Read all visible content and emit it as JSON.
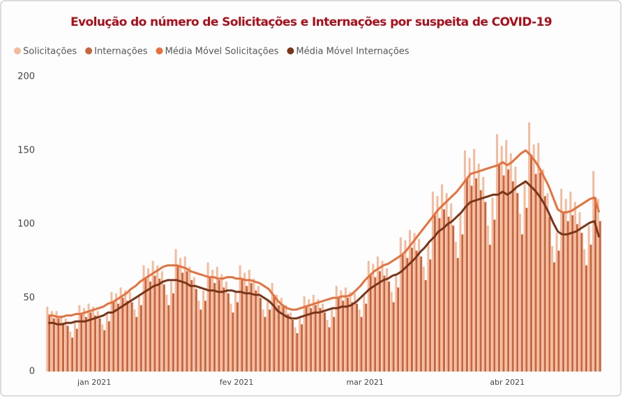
{
  "chart_data": {
    "type": "combo",
    "title": "Evolução do número de Solicitações e Internações por suspeita de COVID-19",
    "categories": [
      null,
      null,
      null,
      null,
      null,
      null,
      null,
      null,
      null,
      null,
      "jan 2021",
      null,
      null,
      null,
      null,
      null,
      null,
      null,
      null,
      null,
      null,
      null,
      null,
      null,
      null,
      null,
      null,
      null,
      null,
      null,
      null,
      null,
      null,
      null,
      null,
      null,
      null,
      null,
      null,
      null,
      null,
      "fev 2021",
      null,
      null,
      null,
      null,
      null,
      null,
      null,
      null,
      null,
      null,
      null,
      null,
      null,
      null,
      null,
      null,
      null,
      null,
      null,
      null,
      null,
      null,
      null,
      null,
      null,
      null,
      null,
      "mar 2021",
      null,
      null,
      null,
      null,
      null,
      null,
      null,
      null,
      null,
      null,
      null,
      null,
      null,
      null,
      null,
      null,
      null,
      null,
      null,
      null,
      null,
      null,
      null,
      null,
      null,
      null,
      null,
      null,
      null,
      null,
      "abr 2021",
      null,
      null,
      null,
      null,
      null,
      null,
      null,
      null,
      null,
      null,
      null,
      null,
      null,
      null,
      null,
      null,
      null,
      null,
      null,
      null
    ],
    "series": [
      {
        "name": "Solicitações",
        "type": "bar",
        "color": "#f5b99b",
        "values": [
          44,
          41,
          41,
          38,
          36,
          27,
          33,
          45,
          43,
          46,
          44,
          41,
          32,
          39,
          54,
          53,
          57,
          55,
          54,
          42,
          52,
          72,
          70,
          75,
          72,
          68,
          52,
          61,
          83,
          77,
          78,
          71,
          64,
          48,
          55,
          74,
          69,
          71,
          66,
          61,
          46,
          54,
          72,
          67,
          69,
          63,
          58,
          42,
          48,
          60,
          52,
          50,
          45,
          40,
          30,
          37,
          51,
          49,
          52,
          49,
          46,
          35,
          43,
          58,
          55,
          57,
          54,
          53,
          42,
          53,
          75,
          73,
          78,
          75,
          70,
          54,
          65,
          91,
          89,
          96,
          94,
          90,
          71,
          87,
          122,
          119,
          127,
          121,
          114,
          88,
          107,
          150,
          145,
          151,
          141,
          132,
          99,
          118,
          161,
          153,
          157,
          148,
          139,
          107,
          128,
          169,
          154,
          155,
          137,
          121,
          85,
          94,
          124,
          117,
          122,
          115,
          108,
          83,
          99,
          136,
          117
        ]
      },
      {
        "name": "Internações",
        "type": "bar",
        "color": "#c9653d",
        "values": [
          38,
          36,
          36,
          33,
          31,
          23,
          29,
          39,
          37,
          40,
          38,
          36,
          28,
          34,
          47,
          46,
          50,
          48,
          47,
          37,
          45,
          63,
          61,
          65,
          63,
          59,
          45,
          53,
          72,
          67,
          68,
          62,
          56,
          42,
          48,
          64,
          60,
          62,
          57,
          53,
          40,
          47,
          63,
          58,
          60,
          55,
          50,
          37,
          42,
          52,
          45,
          44,
          39,
          35,
          26,
          32,
          44,
          43,
          45,
          43,
          40,
          30,
          37,
          50,
          48,
          50,
          47,
          46,
          37,
          46,
          65,
          64,
          68,
          65,
          61,
          47,
          57,
          79,
          77,
          84,
          82,
          78,
          62,
          76,
          106,
          104,
          110,
          105,
          99,
          77,
          93,
          131,
          126,
          131,
          123,
          115,
          86,
          103,
          140,
          133,
          137,
          129,
          121,
          93,
          111,
          147,
          134,
          135,
          119,
          105,
          74,
          82,
          108,
          102,
          106,
          100,
          94,
          72,
          86,
          118,
          102
        ]
      },
      {
        "name": "Média Móvel Solicitações",
        "type": "line",
        "color": "#e8703a",
        "values": [
          38,
          38,
          37,
          37,
          38,
          38,
          39,
          39,
          40,
          41,
          42,
          43,
          44,
          46,
          47,
          49,
          51,
          53,
          56,
          58,
          61,
          63,
          65,
          67,
          69,
          71,
          72,
          72,
          72,
          71,
          70,
          68,
          67,
          66,
          65,
          64,
          64,
          63,
          63,
          64,
          64,
          63,
          63,
          62,
          62,
          61,
          60,
          58,
          56,
          52,
          48,
          45,
          43,
          42,
          42,
          43,
          44,
          45,
          46,
          47,
          48,
          49,
          50,
          50,
          51,
          51,
          52,
          55,
          58,
          62,
          65,
          68,
          70,
          72,
          73,
          75,
          77,
          79,
          82,
          86,
          90,
          94,
          98,
          102,
          106,
          110,
          113,
          116,
          119,
          122,
          126,
          130,
          134,
          135,
          136,
          137,
          138,
          139,
          140,
          142,
          140,
          142,
          145,
          148,
          150,
          147,
          143,
          138,
          132,
          126,
          118,
          110,
          108,
          108,
          109,
          111,
          113,
          115,
          117,
          118,
          108
        ]
      },
      {
        "name": "Média Móvel Internações",
        "type": "line",
        "color": "#7a3418",
        "values": [
          33,
          33,
          32,
          32,
          33,
          33,
          34,
          34,
          34,
          35,
          36,
          37,
          38,
          40,
          40,
          42,
          44,
          46,
          48,
          50,
          52,
          54,
          56,
          58,
          59,
          61,
          62,
          62,
          62,
          61,
          60,
          58,
          58,
          57,
          56,
          55,
          55,
          54,
          54,
          55,
          55,
          54,
          54,
          53,
          53,
          52,
          52,
          50,
          48,
          45,
          41,
          39,
          37,
          36,
          36,
          37,
          38,
          39,
          40,
          40,
          41,
          42,
          43,
          43,
          44,
          44,
          45,
          47,
          50,
          53,
          56,
          58,
          60,
          62,
          63,
          65,
          66,
          68,
          71,
          74,
          77,
          81,
          84,
          88,
          91,
          95,
          97,
          100,
          102,
          105,
          108,
          112,
          115,
          116,
          117,
          118,
          119,
          120,
          120,
          122,
          120,
          122,
          125,
          127,
          129,
          126,
          123,
          119,
          114,
          108,
          101,
          95,
          93,
          93,
          94,
          95,
          97,
          99,
          101,
          102,
          91
        ]
      }
    ],
    "ylim": [
      0,
      200
    ],
    "yticks": [
      0,
      50,
      100,
      150,
      200
    ],
    "grid": false,
    "legend": "top-left"
  }
}
